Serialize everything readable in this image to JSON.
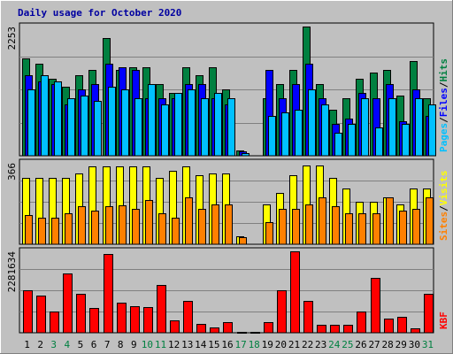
{
  "chart_data": {
    "type": "bar",
    "title": "Daily usage for October 2020",
    "categories": [
      "1",
      "2",
      "3",
      "4",
      "5",
      "6",
      "7",
      "8",
      "9",
      "10",
      "11",
      "12",
      "13",
      "14",
      "15",
      "16",
      "17",
      "18",
      "19",
      "20",
      "21",
      "22",
      "23",
      "24",
      "25",
      "26",
      "27",
      "28",
      "29",
      "30",
      "31"
    ],
    "weekend_days": [
      "3",
      "4",
      "10",
      "11",
      "17",
      "18",
      "24",
      "25",
      "31"
    ],
    "panels": [
      {
        "id": "hits",
        "ylabel_parts": [
          "Pages",
          "/",
          "Files",
          "/",
          "Hits"
        ],
        "ymax_label": "2253",
        "ymax": 2253,
        "series": [
          {
            "name": "Hits",
            "color": "#008040",
            "values": [
              1700,
              1600,
              1350,
              1200,
              1400,
              1500,
              2050,
              1500,
              1550,
              1550,
              1250,
              1100,
              1550,
              1400,
              1550,
              1150,
              90,
              0,
              1000,
              1250,
              1500,
              2250,
              1250,
              800,
              1000,
              1350,
              1450,
              1500,
              1050,
              1650,
              1000
            ]
          },
          {
            "name": "Files",
            "color": "#0000ff",
            "values": [
              1400,
              1300,
              1250,
              900,
              1150,
              1250,
              1600,
              1550,
              1500,
              1000,
              1000,
              1000,
              1250,
              1250,
              1000,
              900,
              70,
              0,
              1500,
              1000,
              1250,
              1600,
              1000,
              550,
              650,
              1100,
              1000,
              1250,
              600,
              1150,
              700
            ]
          },
          {
            "name": "Pages",
            "color": "#00c0ff",
            "values": [
              1150,
              1400,
              1300,
              1000,
              1050,
              950,
              1200,
              1150,
              1000,
              1250,
              900,
              1100,
              1150,
              1000,
              1100,
              1000,
              50,
              0,
              700,
              750,
              800,
              1150,
              900,
              400,
              550,
              1000,
              500,
              1000,
              550,
              1000,
              900
            ]
          }
        ]
      },
      {
        "id": "visits",
        "ylabel_parts": [
          "Sites",
          "/",
          "Visits"
        ],
        "ymax_label": "366",
        "ymax": 366,
        "series": [
          {
            "name": "Visits",
            "color": "#ffff00",
            "values": [
              300,
              300,
              300,
              300,
              320,
              350,
              350,
              350,
              350,
              350,
              300,
              330,
              350,
              310,
              320,
              320,
              35,
              0,
              180,
              230,
              310,
              355,
              355,
              300,
              250,
              190,
              190,
              210,
              180,
              250,
              250
            ]
          },
          {
            "name": "Sites",
            "color": "#ff8000",
            "values": [
              130,
              120,
              120,
              140,
              170,
              150,
              170,
              175,
              160,
              200,
              140,
              120,
              210,
              160,
              180,
              180,
              30,
              0,
              100,
              160,
              160,
              180,
              210,
              170,
              140,
              140,
              140,
              210,
              150,
              160,
              210
            ]
          }
        ]
      },
      {
        "id": "kbytes",
        "ylabel_parts": [
          "KB",
          "F"
        ],
        "ymax_label": "2281634",
        "ymax": 2281634,
        "series": [
          {
            "name": "KBytes",
            "color": "#ff0000",
            "values": [
              1200000,
              1050000,
              600000,
              1650000,
              1100000,
              700000,
              2200000,
              850000,
              750000,
              720000,
              1350000,
              350000,
              900000,
              250000,
              150000,
              300000,
              20000,
              20000,
              300000,
              1200000,
              2281634,
              900000,
              220000,
              220000,
              220000,
              600000,
              1550000,
              400000,
              450000,
              120000,
              1100000
            ]
          }
        ]
      }
    ]
  }
}
